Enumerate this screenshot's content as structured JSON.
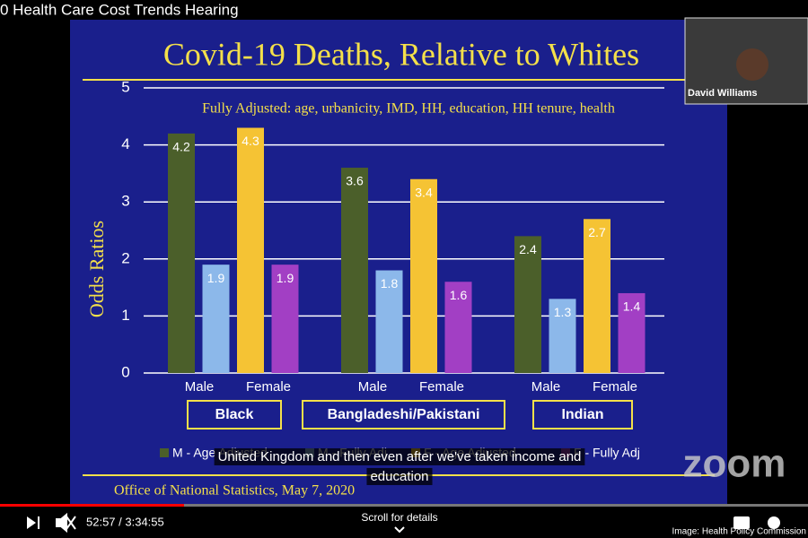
{
  "video": {
    "title": "0 Health Care Cost Trends Hearing",
    "participant": "David Williams",
    "logo": "zoom",
    "caption": [
      "United Kingdom and then even after we've taken income and",
      "education"
    ],
    "time": "52:57 / 3:34:55",
    "scroll_hint": "Scroll for details",
    "credit": "Image: Health Policy Commission"
  },
  "chart_data": {
    "type": "bar",
    "title": "Covid-19 Deaths, Relative to Whites",
    "subtitle": "Fully Adjusted: age, urbanicity, IMD, HH, education, HH tenure, health",
    "y_label": "Odds Ratios",
    "source": "Office of National Statistics, May 7, 2020",
    "categories": [
      "Black",
      "Bangladeshi/Pakistani",
      "Indian"
    ],
    "sex_labels": [
      "Male",
      "Female"
    ],
    "ylim": [
      0,
      5
    ],
    "yticks": [
      0,
      1,
      2,
      3,
      4,
      5
    ],
    "grid": true,
    "series": [
      {
        "name": "M - Age Adjusted",
        "color": "#4b5f2a",
        "values": [
          4.2,
          3.6,
          2.4
        ]
      },
      {
        "name": "M - Fully Adj",
        "color": "#8cb8ea",
        "values": [
          1.9,
          1.8,
          1.3
        ]
      },
      {
        "name": "F - Age Adjusted",
        "color": "#f5c334",
        "values": [
          4.3,
          3.4,
          2.7
        ]
      },
      {
        "name": "F - Fully Adj",
        "color": "#a23fc4",
        "values": [
          1.9,
          1.6,
          1.4
        ]
      }
    ]
  }
}
